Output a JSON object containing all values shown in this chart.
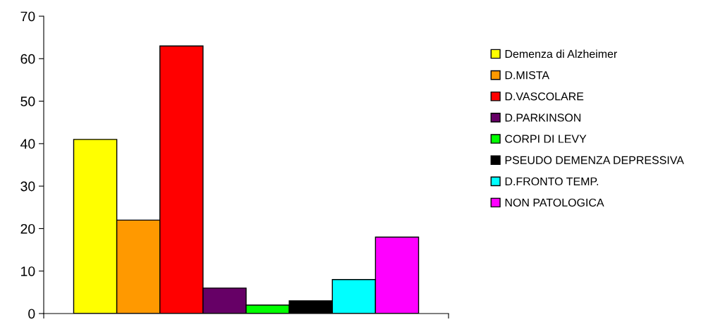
{
  "chart_data": {
    "type": "bar",
    "categories": [
      null
    ],
    "series": [
      {
        "name": "Demenza di Alzheimer",
        "color": "#ffff00",
        "values": [
          41
        ]
      },
      {
        "name": "D.MISTA",
        "color": "#ff9900",
        "values": [
          22
        ]
      },
      {
        "name": "D.VASCOLARE",
        "color": "#ff0000",
        "values": [
          63
        ]
      },
      {
        "name": "D.PARKINSON",
        "color": "#660066",
        "values": [
          6
        ]
      },
      {
        "name": "CORPI DI LEVY",
        "color": "#00ff00",
        "values": [
          2
        ]
      },
      {
        "name": "PSEUDO DEMENZA DEPRESSIVA",
        "color": "#000000",
        "values": [
          3
        ]
      },
      {
        "name": "D.FRONTO TEMP.",
        "color": "#00ffff",
        "values": [
          8
        ]
      },
      {
        "name": "NON PATOLOGICA",
        "color": "#ff00ff",
        "values": [
          18
        ]
      }
    ],
    "ylim": [
      0,
      70
    ],
    "yticks": [
      0,
      10,
      20,
      30,
      40,
      50,
      60,
      70
    ],
    "grid": false,
    "legend": "right"
  }
}
